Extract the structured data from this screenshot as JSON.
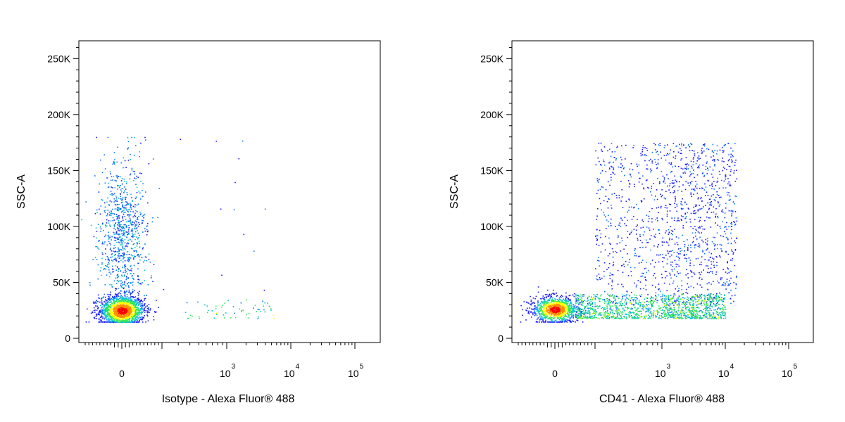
{
  "colors": {
    "low_density": "#1a1aff",
    "mid_density": "#00c8c8",
    "high_density": "#ffff00",
    "peak_density": "#ff0000"
  },
  "chart_data": [
    {
      "type": "scatter",
      "subtype": "flow-cytometry-density-dot-plot",
      "xlabel": "Isotype - Alexa Fluor® 488",
      "ylabel": "SSC-A",
      "x_scale": "biexponential",
      "x_ticks": [
        {
          "value": 0,
          "label": "0"
        },
        {
          "value": 1000,
          "base": "10",
          "exp": "3"
        },
        {
          "value": 10000,
          "base": "10",
          "exp": "4"
        },
        {
          "value": 100000,
          "base": "10",
          "exp": "5"
        }
      ],
      "y_ticks": [
        {
          "value": 0,
          "label": "0"
        },
        {
          "value": 50000,
          "label": "50K"
        },
        {
          "value": 100000,
          "label": "100K"
        },
        {
          "value": 150000,
          "label": "150K"
        },
        {
          "value": 200000,
          "label": "200K"
        },
        {
          "value": 250000,
          "label": "250K"
        }
      ],
      "ylim": [
        0,
        262144
      ],
      "populations": [
        {
          "description": "dense core",
          "x_center": 0,
          "y_center": 25000,
          "y_spread": 7000,
          "events": 1600
        },
        {
          "description": "vertical tail",
          "x_center": 0,
          "y_center": 90000,
          "y_spread": 35000,
          "events": 900
        },
        {
          "description": "low SSC spread",
          "x_range": [
            300,
            6000
          ],
          "y_range": [
            18000,
            35000
          ],
          "events": 60
        },
        {
          "description": "outliers",
          "x_range": [
            100,
            6000
          ],
          "y_range": [
            40000,
            180000
          ],
          "events": 15
        }
      ]
    },
    {
      "type": "scatter",
      "subtype": "flow-cytometry-density-dot-plot",
      "xlabel": "CD41 - Alexa Fluor® 488",
      "ylabel": "SSC-A",
      "x_scale": "biexponential",
      "x_ticks": [
        {
          "value": 0,
          "label": "0"
        },
        {
          "value": 1000,
          "base": "10",
          "exp": "3"
        },
        {
          "value": 10000,
          "base": "10",
          "exp": "4"
        },
        {
          "value": 100000,
          "base": "10",
          "exp": "5"
        }
      ],
      "y_ticks": [
        {
          "value": 0,
          "label": "0"
        },
        {
          "value": 50000,
          "label": "50K"
        },
        {
          "value": 100000,
          "label": "100K"
        },
        {
          "value": 150000,
          "label": "150K"
        },
        {
          "value": 200000,
          "label": "200K"
        },
        {
          "value": 250000,
          "label": "250K"
        }
      ],
      "ylim": [
        0,
        262144
      ],
      "populations": [
        {
          "description": "negative core",
          "x_center": 0,
          "y_center": 26000,
          "y_spread": 6000,
          "events": 1100
        },
        {
          "description": "positive low-SSC band",
          "x_range": [
            100,
            10000
          ],
          "y_range": [
            18000,
            40000
          ],
          "events": 1300
        },
        {
          "description": "positive high-SSC cloud",
          "x_range": [
            200,
            15000
          ],
          "y_range": [
            30000,
            175000
          ],
          "events": 1300
        }
      ]
    }
  ]
}
